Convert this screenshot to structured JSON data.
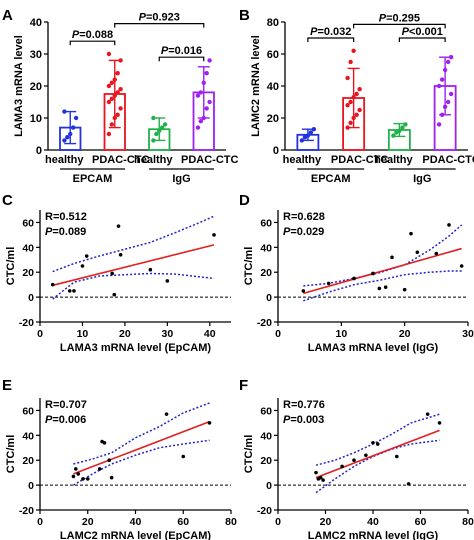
{
  "colors": {
    "blue": "#2233dd",
    "red": "#e8141e",
    "green": "#21b14b",
    "purple": "#a020f0",
    "black": "#000000",
    "fit": "#e02020",
    "ci": "#2222cc"
  },
  "chart_data": [
    {
      "panel": "A",
      "type": "bar",
      "ylabel": "LAMA3 mRNA level",
      "ylim": [
        0,
        40
      ],
      "yticks": [
        0,
        10,
        20,
        30,
        40
      ],
      "categories": [
        "healthy",
        "PDAC-CTC",
        "healthy",
        "PDAC-CTC"
      ],
      "groups": [
        "EPCAM",
        "IgG"
      ],
      "bars": [
        {
          "value": 7,
          "sd": 5,
          "color": "blue",
          "points": [
            3,
            4,
            5,
            7,
            10,
            12
          ]
        },
        {
          "value": 17.5,
          "sd": 10.5,
          "color": "red",
          "points": [
            5,
            8,
            10,
            11,
            13,
            15,
            16,
            17,
            18,
            19,
            20,
            21,
            22,
            24,
            28,
            30
          ]
        },
        {
          "value": 6.5,
          "sd": 3.5,
          "color": "green",
          "points": [
            3,
            5,
            6,
            7,
            8,
            10
          ]
        },
        {
          "value": 18,
          "sd": 8,
          "color": "purple",
          "points": [
            7,
            9,
            10,
            13,
            15,
            17,
            18,
            21,
            24,
            28
          ]
        }
      ],
      "brackets": [
        {
          "from": 0,
          "to": 1,
          "level": 34,
          "italic": "P",
          "text": "=0.088"
        },
        {
          "from": 1,
          "to": 3,
          "level": 39.5,
          "italic": "P",
          "text": "=0.923"
        },
        {
          "from": 2,
          "to": 3,
          "level": 29,
          "italic": "P",
          "text": "=0.016"
        }
      ]
    },
    {
      "panel": "B",
      "type": "bar",
      "ylabel": "LAMC2 mRNA level",
      "ylim": [
        0,
        80
      ],
      "yticks": [
        0,
        20,
        40,
        60,
        80
      ],
      "categories": [
        "healthy",
        "PDAC-CTC",
        "healthy",
        "PDAC-CTC"
      ],
      "groups": [
        "EPCAM",
        "IgG"
      ],
      "bars": [
        {
          "value": 9.5,
          "sd": 3.5,
          "color": "blue",
          "points": [
            6,
            8,
            9,
            11,
            13
          ]
        },
        {
          "value": 32.5,
          "sd": 18.5,
          "color": "red",
          "points": [
            14,
            17,
            20,
            22,
            25,
            28,
            30,
            33,
            35,
            38,
            45,
            55,
            62
          ]
        },
        {
          "value": 12.5,
          "sd": 4,
          "color": "green",
          "points": [
            9,
            11,
            12,
            14,
            16
          ]
        },
        {
          "value": 40,
          "sd": 18,
          "color": "purple",
          "points": [
            16,
            22,
            27,
            30,
            35,
            40,
            44,
            50,
            55,
            58
          ]
        }
      ],
      "brackets": [
        {
          "from": 0,
          "to": 1,
          "level": 70,
          "italic": "P",
          "text": "=0.032"
        },
        {
          "from": 1,
          "to": 3,
          "level": 78.5,
          "italic": "P",
          "text": "=0.295"
        },
        {
          "from": 2,
          "to": 3,
          "level": 70,
          "italic": "P",
          "text": "<0.001"
        }
      ]
    },
    {
      "panel": "C",
      "type": "scatter",
      "xlabel": "LAMA3 mRNA level (EpCAM)",
      "ylabel": "CTC/ml",
      "xlim": [
        0,
        45
      ],
      "ylim": [
        -20,
        70
      ],
      "xticks": [
        0,
        10,
        20,
        30,
        40
      ],
      "yticks": [
        -20,
        0,
        20,
        40,
        60
      ],
      "r_text": "R=0.512",
      "p_text": "=0.089",
      "points": [
        [
          3,
          10
        ],
        [
          7,
          5
        ],
        [
          8,
          5
        ],
        [
          10,
          25
        ],
        [
          11,
          33
        ],
        [
          17,
          19
        ],
        [
          17.5,
          2
        ],
        [
          18.5,
          57
        ],
        [
          19,
          34
        ],
        [
          26,
          22
        ],
        [
          30,
          13
        ],
        [
          41,
          50
        ]
      ],
      "fit": [
        3,
        41,
        9.5,
        42
      ],
      "ci_upper": [
        [
          3,
          20.5
        ],
        [
          8,
          27
        ],
        [
          14,
          33
        ],
        [
          20,
          38.5
        ],
        [
          26,
          44
        ],
        [
          32,
          52
        ],
        [
          37,
          59
        ],
        [
          41,
          65
        ]
      ],
      "ci_lower": [
        [
          3,
          -1.5
        ],
        [
          8,
          12
        ],
        [
          14,
          17
        ],
        [
          20,
          18
        ],
        [
          26,
          19
        ],
        [
          32,
          18.5
        ],
        [
          37,
          16.5
        ],
        [
          41,
          15
        ]
      ]
    },
    {
      "panel": "D",
      "type": "scatter",
      "xlabel": "LAMA3 mRNA level (IgG)",
      "ylabel": "CTC/ml",
      "xlim": [
        0,
        30
      ],
      "ylim": [
        -20,
        70
      ],
      "xticks": [
        0,
        10,
        20,
        30
      ],
      "yticks": [
        -20,
        0,
        20,
        40,
        60
      ],
      "r_text": "R=0.628",
      "p_text": "=0.029",
      "points": [
        [
          4,
          5
        ],
        [
          8,
          11
        ],
        [
          12,
          15
        ],
        [
          15,
          19
        ],
        [
          16,
          7
        ],
        [
          17,
          8
        ],
        [
          18,
          32
        ],
        [
          20,
          6
        ],
        [
          21,
          51
        ],
        [
          22,
          36
        ],
        [
          25,
          35
        ],
        [
          27,
          58
        ],
        [
          29,
          25
        ]
      ],
      "fit": [
        4,
        29,
        3,
        39
      ],
      "ci_upper": [
        [
          4,
          9
        ],
        [
          8,
          11
        ],
        [
          12,
          15
        ],
        [
          16,
          19.5
        ],
        [
          20,
          26
        ],
        [
          24,
          38
        ],
        [
          27,
          49
        ],
        [
          29,
          58
        ]
      ],
      "ci_lower": [
        [
          4,
          -3
        ],
        [
          8,
          4
        ],
        [
          12,
          10
        ],
        [
          16,
          13.5
        ],
        [
          20,
          18
        ],
        [
          24,
          20
        ],
        [
          27,
          21
        ],
        [
          29,
          21
        ]
      ]
    },
    {
      "panel": "E",
      "type": "scatter",
      "xlabel": "LAMC2 mRNA level (EpCAM)",
      "ylabel": "CTC/ml",
      "xlim": [
        0,
        80
      ],
      "ylim": [
        -20,
        70
      ],
      "xticks": [
        0,
        20,
        40,
        60,
        80
      ],
      "yticks": [
        -20,
        0,
        20,
        40,
        60
      ],
      "r_text": "R=0.707",
      "p_text": "=0.006",
      "points": [
        [
          14,
          7
        ],
        [
          15,
          13
        ],
        [
          16,
          9
        ],
        [
          18,
          5
        ],
        [
          20,
          5
        ],
        [
          25,
          13
        ],
        [
          26,
          35
        ],
        [
          27,
          34
        ],
        [
          29,
          20
        ],
        [
          30,
          6
        ],
        [
          53,
          57
        ],
        [
          60,
          23
        ],
        [
          71,
          50
        ]
      ],
      "fit": [
        14,
        71,
        9,
        51
      ],
      "ci_upper": [
        [
          14,
          17
        ],
        [
          22,
          21
        ],
        [
          30,
          26
        ],
        [
          40,
          38
        ],
        [
          50,
          47
        ],
        [
          60,
          58
        ],
        [
          71,
          66
        ]
      ],
      "ci_lower": [
        [
          14,
          0
        ],
        [
          22,
          9
        ],
        [
          30,
          17
        ],
        [
          40,
          24
        ],
        [
          50,
          30
        ],
        [
          60,
          33
        ],
        [
          71,
          36
        ]
      ]
    },
    {
      "panel": "F",
      "type": "scatter",
      "xlabel": "LAMC2 mRNA level (IgG)",
      "ylabel": "CTC/ml",
      "xlim": [
        0,
        80
      ],
      "ylim": [
        -20,
        70
      ],
      "xticks": [
        0,
        20,
        40,
        60,
        80
      ],
      "yticks": [
        -20,
        0,
        20,
        40,
        60
      ],
      "r_text": "R=0.776",
      "p_text": "=0.003",
      "points": [
        [
          16,
          10
        ],
        [
          17,
          5
        ],
        [
          18,
          6
        ],
        [
          19,
          4
        ],
        [
          27,
          15
        ],
        [
          32,
          20
        ],
        [
          37,
          24
        ],
        [
          40,
          34
        ],
        [
          42,
          33
        ],
        [
          50,
          23
        ],
        [
          55,
          1
        ],
        [
          63,
          57
        ],
        [
          68,
          50
        ]
      ],
      "fit": [
        16,
        68,
        6,
        44
      ],
      "ci_upper": [
        [
          16,
          16
        ],
        [
          24,
          20
        ],
        [
          32,
          26
        ],
        [
          40,
          33
        ],
        [
          48,
          41
        ],
        [
          56,
          50
        ],
        [
          68,
          57
        ]
      ],
      "ci_lower": [
        [
          16,
          -6
        ],
        [
          24,
          5
        ],
        [
          32,
          15
        ],
        [
          40,
          23
        ],
        [
          48,
          29
        ],
        [
          56,
          33
        ],
        [
          68,
          36
        ]
      ]
    }
  ]
}
